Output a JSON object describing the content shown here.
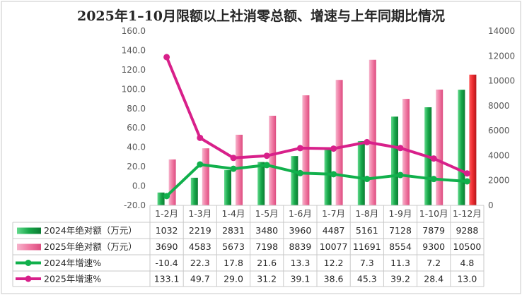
{
  "chart_data": {
    "type": "bar",
    "title": "2025年1–10月限额以上社消零总额、增速与上年同期比情况",
    "categories": [
      "1-2月",
      "1-3月",
      "1-4月",
      "1-5月",
      "1-6月",
      "1-7月",
      "1-8月",
      "1-9月",
      "1-10月",
      "1-12月"
    ],
    "left_axis": {
      "ylim": [
        -20,
        160
      ],
      "ticks": [
        "-20.0",
        "0.0",
        "20.0",
        "40.0",
        "60.0",
        "80.0",
        "100.0",
        "120.0",
        "140.0",
        "160.0"
      ]
    },
    "right_axis": {
      "ylim": [
        0,
        14000
      ],
      "ticks": [
        "0",
        "2000",
        "4000",
        "6000",
        "8000",
        "10000",
        "12000",
        "14000"
      ]
    },
    "series": [
      {
        "name": "2024年绝对额（万元）",
        "type": "bar",
        "axis": "right",
        "color": "#1fa84d",
        "values": [
          1032,
          2219,
          2831,
          3480,
          3960,
          4487,
          5161,
          7128,
          7879,
          9288
        ],
        "labels": [
          "1032",
          "2219",
          "2831",
          "3480",
          "3960",
          "4487",
          "5161",
          "7128",
          "7879",
          "9288"
        ]
      },
      {
        "name": "2025年绝对额（万元）",
        "type": "bar",
        "axis": "right",
        "color": "#f07aa3",
        "highlight_last_color": "#e8343a",
        "values": [
          3690,
          4583,
          5673,
          7198,
          8839,
          10077,
          11691,
          8554,
          9300,
          10500
        ],
        "labels": [
          "3690",
          "4583",
          "5673",
          "7198",
          "8839",
          "10077",
          "11691",
          "8554",
          "9300",
          "10500"
        ]
      },
      {
        "name": "2024年增速%",
        "type": "line",
        "axis": "left",
        "color": "#11b04c",
        "values": [
          -10.4,
          22.3,
          17.8,
          21.6,
          13.3,
          12.2,
          7.3,
          11.3,
          7.2,
          4.8
        ],
        "labels": [
          "-10.4",
          "22.3",
          "17.8",
          "21.6",
          "13.3",
          "12.2",
          "7.3",
          "11.3",
          "7.2",
          "4.8"
        ]
      },
      {
        "name": "2025年增速%",
        "type": "line",
        "axis": "left",
        "color": "#d8208a",
        "values": [
          133.1,
          49.7,
          29.0,
          31.2,
          39.1,
          38.6,
          45.3,
          39.2,
          28.4,
          13.0
        ],
        "labels": [
          "133.1",
          "49.7",
          "29.0",
          "31.2",
          "39.1",
          "38.6",
          "45.3",
          "39.2",
          "28.4",
          "13.0"
        ]
      }
    ],
    "legend": "data-table-below",
    "grid": false
  }
}
